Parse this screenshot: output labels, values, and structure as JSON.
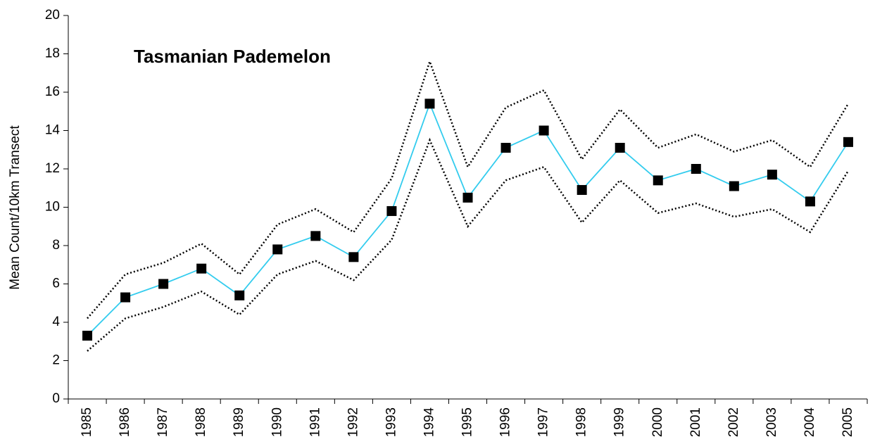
{
  "chart_data": {
    "type": "line",
    "title": "Tasmanian Pademelon",
    "y_label": "Mean Count/10km Transect",
    "categories": [
      "1985",
      "1986",
      "1987",
      "1988",
      "1989",
      "1990",
      "1991",
      "1992",
      "1993",
      "1994",
      "1995",
      "1996",
      "1997",
      "1998",
      "1999",
      "2000",
      "2001",
      "2002",
      "2003",
      "2004",
      "2005"
    ],
    "series": [
      {
        "color": "#000000",
        "dash": "dotted",
        "values": [
          4.2,
          6.5,
          7.1,
          8.1,
          6.5,
          9.1,
          9.9,
          8.7,
          11.5,
          17.6,
          12.1,
          15.2,
          16.1,
          12.5,
          15.1,
          13.1,
          13.8,
          12.9,
          13.5,
          12.1,
          15.4
        ]
      },
      {
        "color": "#33ccee",
        "marker": "square",
        "marker_color": "#000000",
        "values": [
          3.3,
          5.3,
          6.0,
          6.8,
          5.4,
          7.8,
          8.5,
          7.4,
          9.8,
          15.4,
          10.5,
          13.1,
          14.0,
          10.9,
          13.1,
          11.4,
          12.0,
          11.1,
          11.7,
          10.3,
          13.4
        ]
      },
      {
        "color": "#000000",
        "dash": "dotted",
        "values": [
          2.5,
          4.2,
          4.8,
          5.6,
          4.4,
          6.5,
          7.2,
          6.2,
          8.3,
          13.5,
          9.0,
          11.4,
          12.1,
          9.2,
          11.4,
          9.7,
          10.2,
          9.5,
          9.9,
          8.7,
          11.9
        ]
      }
    ],
    "ylim": [
      0,
      20
    ],
    "yticks": [
      0,
      2,
      4,
      6,
      8,
      10,
      12,
      14,
      16,
      18,
      20
    ],
    "grid": false
  }
}
